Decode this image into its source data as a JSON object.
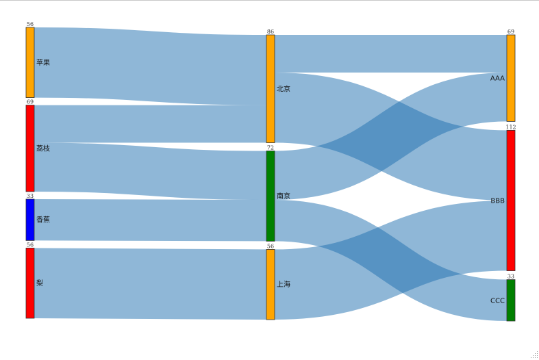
{
  "chart_data": {
    "type": "sankey",
    "columns": [
      [
        "苹果",
        "荔枝",
        "香蕉",
        "梨"
      ],
      [
        "北京",
        "南京",
        "上海"
      ],
      [
        "AAA",
        "BBB",
        "CCC"
      ]
    ],
    "nodes": [
      {
        "name": "苹果",
        "value": 56,
        "color": "#FFA500"
      },
      {
        "name": "荔枝",
        "value": 69,
        "color": "#FF0000"
      },
      {
        "name": "香蕉",
        "value": 33,
        "color": "#0000FF"
      },
      {
        "name": "梨",
        "value": 56,
        "color": "#FF0000"
      },
      {
        "name": "北京",
        "value": 86,
        "color": "#FFA500"
      },
      {
        "name": "南京",
        "value": 72,
        "color": "#008000"
      },
      {
        "name": "上海",
        "value": 56,
        "color": "#FFA500"
      },
      {
        "name": "AAA",
        "value": 69,
        "color": "#FFA500"
      },
      {
        "name": "BBB",
        "value": 112,
        "color": "#FF0000"
      },
      {
        "name": "CCC",
        "value": 33,
        "color": "#008000"
      }
    ],
    "links": [
      {
        "source": "苹果",
        "target": "北京",
        "value": 56
      },
      {
        "source": "荔枝",
        "target": "北京",
        "value": 30
      },
      {
        "source": "荔枝",
        "target": "南京",
        "value": 39
      },
      {
        "source": "香蕉",
        "target": "南京",
        "value": 33
      },
      {
        "source": "梨",
        "target": "上海",
        "value": 56
      },
      {
        "source": "北京",
        "target": "AAA",
        "value": 30
      },
      {
        "source": "北京",
        "target": "BBB",
        "value": 56
      },
      {
        "source": "南京",
        "target": "AAA",
        "value": 39
      },
      {
        "source": "南京",
        "target": "CCC",
        "value": 33
      },
      {
        "source": "上海",
        "target": "BBB",
        "value": 56
      }
    ],
    "link_color": "#1f6fb0"
  }
}
